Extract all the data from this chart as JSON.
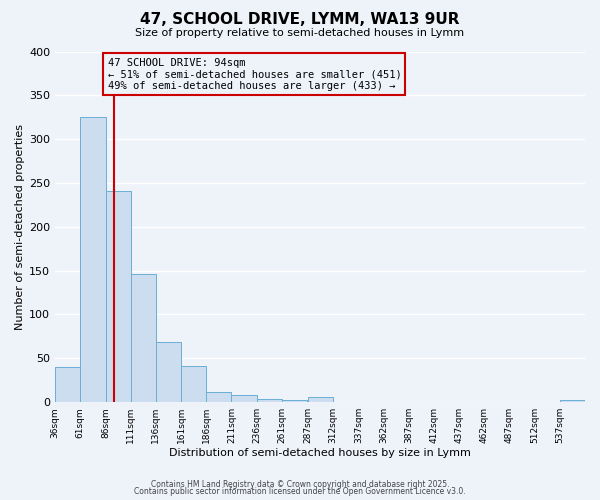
{
  "title": "47, SCHOOL DRIVE, LYMM, WA13 9UR",
  "subtitle": "Size of property relative to semi-detached houses in Lymm",
  "xlabel": "Distribution of semi-detached houses by size in Lymm",
  "ylabel": "Number of semi-detached properties",
  "bar_values": [
    40,
    325,
    241,
    146,
    68,
    41,
    11,
    8,
    4,
    2,
    6,
    0,
    0,
    0,
    0,
    0,
    0,
    0,
    0,
    0,
    2
  ],
  "bin_starts": [
    36,
    61,
    86,
    111,
    136,
    161,
    186,
    211,
    236,
    261,
    287,
    312,
    337,
    362,
    387,
    412,
    437,
    462,
    487,
    512,
    537
  ],
  "bin_width": 25,
  "tick_labels": [
    "36sqm",
    "61sqm",
    "86sqm",
    "111sqm",
    "136sqm",
    "161sqm",
    "186sqm",
    "211sqm",
    "236sqm",
    "261sqm",
    "287sqm",
    "312sqm",
    "337sqm",
    "362sqm",
    "387sqm",
    "412sqm",
    "437sqm",
    "462sqm",
    "487sqm",
    "512sqm",
    "537sqm"
  ],
  "bar_color": "#ccddf0",
  "bar_edge_color": "#6aaed6",
  "vline_x": 94,
  "vline_color": "#cc0000",
  "annotation_title": "47 SCHOOL DRIVE: 94sqm",
  "annotation_line1": "← 51% of semi-detached houses are smaller (451)",
  "annotation_line2": "49% of semi-detached houses are larger (433) →",
  "annotation_box_edgecolor": "#cc0000",
  "ylim": [
    0,
    400
  ],
  "yticks": [
    0,
    50,
    100,
    150,
    200,
    250,
    300,
    350,
    400
  ],
  "xlim_left": 36,
  "xlim_right": 562,
  "background_color": "#eef2f9",
  "grid_color": "#ffffff",
  "footer1": "Contains HM Land Registry data © Crown copyright and database right 2025.",
  "footer2": "Contains public sector information licensed under the Open Government Licence v3.0."
}
